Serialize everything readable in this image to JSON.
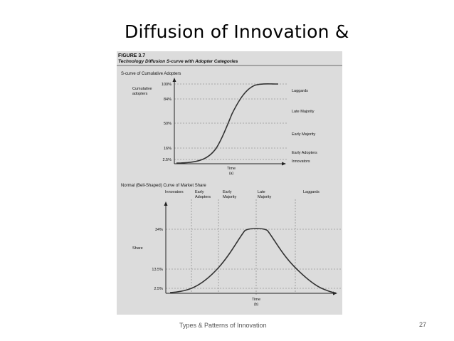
{
  "slide": {
    "title": "Diffusion of Innovation &",
    "footer": "Types & Patterns of Innovation",
    "page_number": "27"
  },
  "figure": {
    "label": "FIGURE 3.7",
    "caption": "Technology Diffusion S-curve with Adopter Categories",
    "top_chart": {
      "heading": "S-curve of Cumulative Adopters",
      "ylabel": "Cumulative adopters",
      "xlabel": "Time",
      "sublabel": "(a)",
      "ticks": [
        "100%",
        "84%",
        "50%",
        "16%",
        "2.5%"
      ],
      "categories": [
        "Laggards",
        "Late Majority",
        "Early Majority",
        "Early Adopters",
        "Innovators"
      ]
    },
    "bottom_chart": {
      "heading": "Normal (Bell-Shaped) Curve of Market Share",
      "ylabel": "Share",
      "xlabel": "Time",
      "sublabel": "(b)",
      "ticks": [
        "34%",
        "13.5%",
        "2.5%"
      ],
      "categories": [
        "Innovators",
        "Early Adopters",
        "Early Majority",
        "Late Majority",
        "Laggards"
      ]
    }
  },
  "colors": {
    "panel": "#dcdcdc",
    "curve": "#333333",
    "grid": "#777777"
  }
}
